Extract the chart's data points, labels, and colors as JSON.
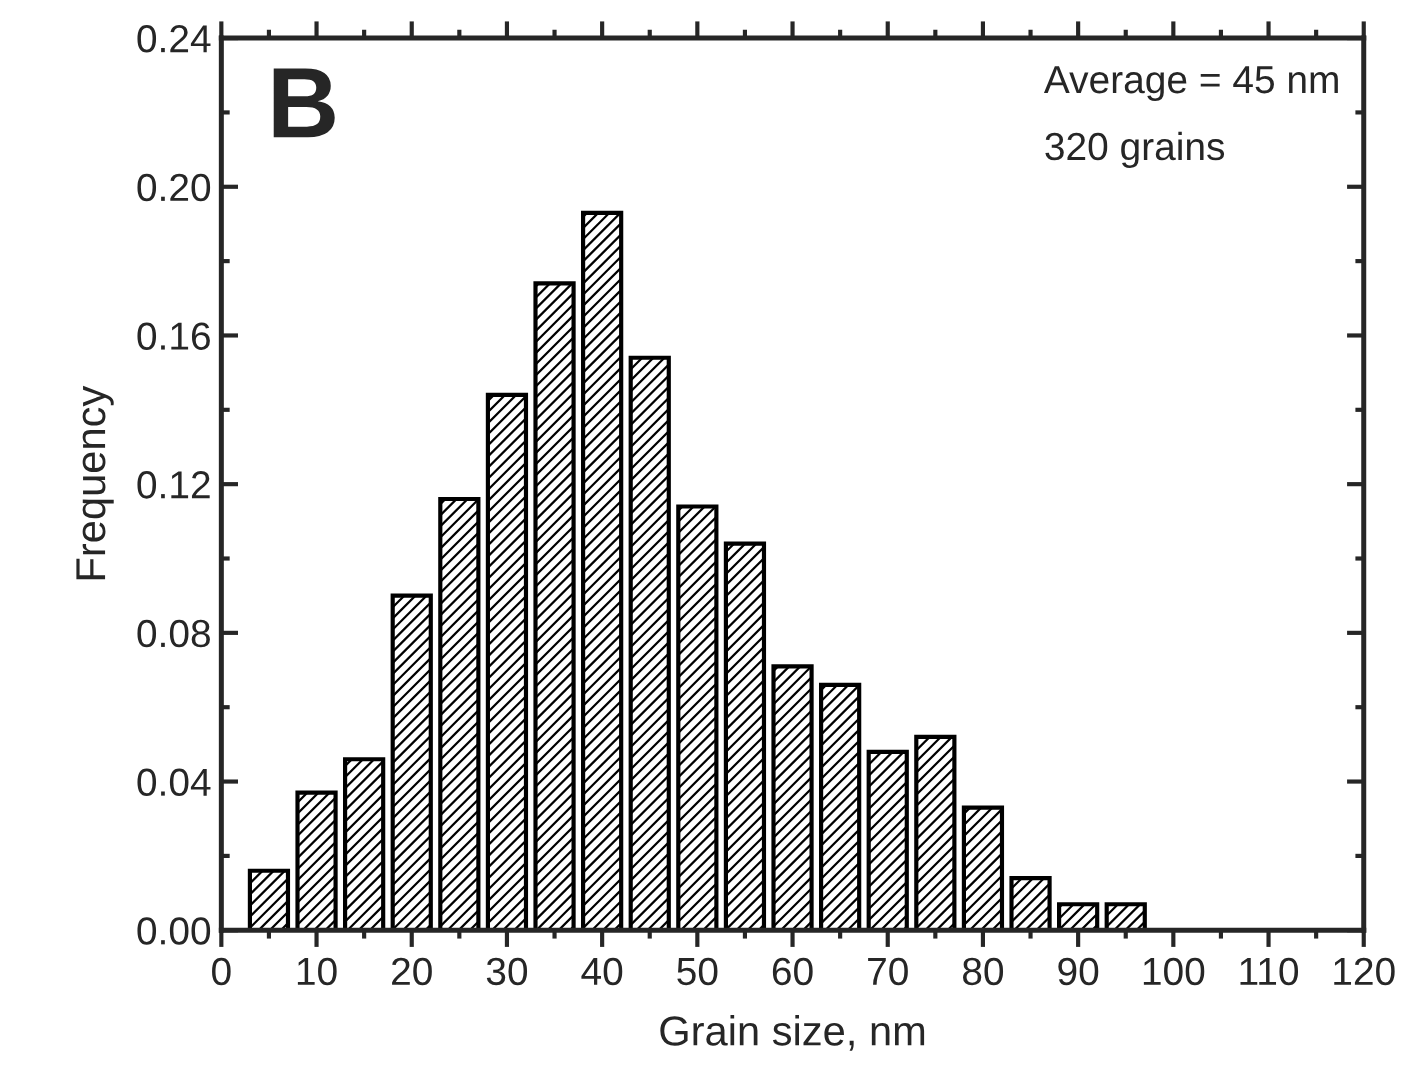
{
  "chart_data": {
    "type": "bar",
    "xlabel": "Grain size, nm",
    "ylabel": "Frequency",
    "annotations": [
      "B",
      "Average = 45 nm",
      "320 grains"
    ],
    "x": [
      5,
      10,
      15,
      20,
      25,
      30,
      35,
      40,
      45,
      50,
      55,
      60,
      65,
      70,
      75,
      80,
      85,
      90,
      95
    ],
    "values": [
      0.016,
      0.037,
      0.046,
      0.09,
      0.116,
      0.144,
      0.174,
      0.193,
      0.154,
      0.114,
      0.104,
      0.071,
      0.066,
      0.048,
      0.052,
      0.033,
      0.014,
      0.007,
      0.007
    ],
    "color": "#000000",
    "xlim": [
      0,
      120
    ],
    "xticks": [
      0,
      10,
      20,
      30,
      40,
      50,
      60,
      70,
      80,
      90,
      100,
      110,
      120
    ],
    "ylim": [
      0,
      0.24
    ],
    "yticks": [
      {
        "value": 0,
        "label": "0.00"
      },
      {
        "value": 0.04,
        "label": "0.04"
      },
      {
        "value": 0.08,
        "label": "0.08"
      },
      {
        "value": 0.12,
        "label": "0.12"
      },
      {
        "value": 0.16,
        "label": "0.16"
      },
      {
        "value": 0.2,
        "label": "0.20"
      },
      {
        "value": 0.24,
        "label": "0.24"
      }
    ],
    "grid": false,
    "legend": false
  }
}
